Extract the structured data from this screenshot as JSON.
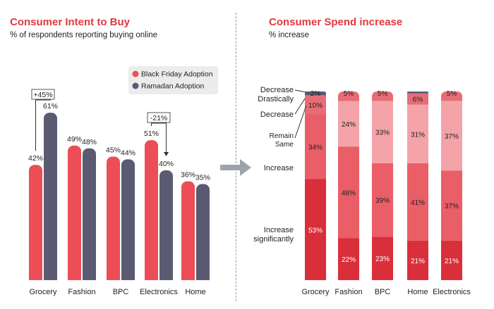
{
  "colors": {
    "title": "#e0393e",
    "black_friday": "#ec4d56",
    "ramadan": "#5a5a72",
    "spend_levels": [
      "#d92f3a",
      "#ea5e67",
      "#f4a3a8",
      "#e66d76",
      "#5a5a72"
    ]
  },
  "left": {
    "title": "Consumer Intent to Buy",
    "subtitle": "% of respondents reporting buying online",
    "callouts": [
      {
        "category": "Grocery",
        "label": "+45%"
      },
      {
        "category": "Electronics",
        "label": "-21%"
      }
    ]
  },
  "right": {
    "title": "Consumer Spend increase",
    "subtitle": "% increase"
  },
  "chart_data": [
    {
      "type": "bar",
      "title": "Consumer Intent to Buy",
      "subtitle": "% of respondents reporting buying online",
      "categories": [
        "Grocery",
        "Fashion",
        "BPC",
        "Electronics",
        "Home"
      ],
      "series": [
        {
          "name": "Black Friday Adoption",
          "values": [
            42,
            49,
            45,
            51,
            36
          ],
          "labels": [
            "42%",
            "49%",
            "45%",
            "51%",
            "36%"
          ]
        },
        {
          "name": "Ramadan Adoption",
          "values": [
            61,
            48,
            44,
            40,
            35
          ],
          "labels": [
            "61%",
            "48%",
            "44%",
            "40%",
            "35%"
          ]
        }
      ],
      "legend": "top-right",
      "ylim": [
        0,
        70
      ],
      "grid": false
    },
    {
      "type": "bar",
      "stacked": true,
      "title": "Consumer Spend increase",
      "subtitle": "% increase",
      "categories": [
        "Grocery",
        "Fashion",
        "BPC",
        "Home",
        "Electronics"
      ],
      "level_labels": [
        "Increase significantly",
        "Increase",
        "Remain Same",
        "Decrease",
        "Decrease Drastically"
      ],
      "series": [
        {
          "name": "Increase significantly",
          "values": [
            53,
            22,
            23,
            21,
            21
          ],
          "labels": [
            "53%",
            "22%",
            "23%",
            "21%",
            "21%"
          ]
        },
        {
          "name": "Increase",
          "values": [
            34,
            48,
            39,
            41,
            37
          ],
          "labels": [
            "34%",
            "48%",
            "39%",
            "41%",
            "37%"
          ]
        },
        {
          "name": "Remain Same",
          "values": [
            0,
            24,
            33,
            31,
            37
          ],
          "labels": [
            "",
            "24%",
            "33%",
            "31%",
            "37%"
          ]
        },
        {
          "name": "Decrease",
          "values": [
            10,
            5,
            5,
            6,
            5
          ],
          "labels": [
            "10%",
            "5%",
            "5%",
            "6%",
            "5%"
          ]
        },
        {
          "name": "Decrease Drastically",
          "values": [
            2,
            0,
            0,
            1,
            0
          ],
          "labels": [
            "2%",
            "",
            "",
            "",
            ""
          ]
        }
      ],
      "ylim": [
        0,
        100
      ],
      "grid": false
    }
  ]
}
